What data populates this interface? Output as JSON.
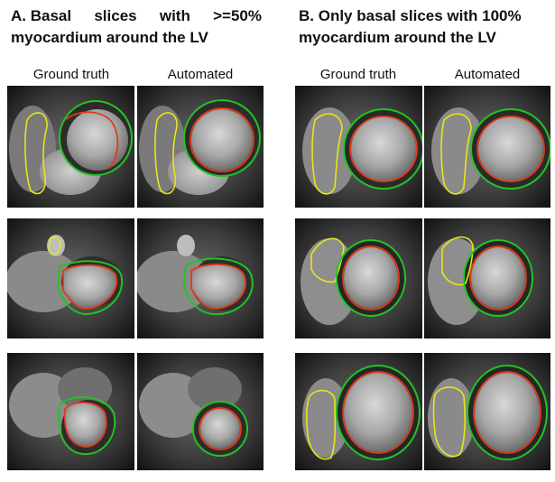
{
  "section_a": {
    "title_words_line1": [
      "A. Basal",
      "slices",
      "with",
      ">=50%"
    ],
    "title_line2": "myocardium around the LV",
    "columns": [
      "Ground truth",
      "Automated"
    ]
  },
  "section_b": {
    "title_line1": "B. Only basal slices with 100%",
    "title_line2": "myocardium around the LV",
    "columns": [
      "Ground truth",
      "Automated"
    ]
  },
  "contour_colors": {
    "epicardium": "#22c322",
    "endocardium": "#e03a1a",
    "right_ventricle": "#e6e619"
  }
}
